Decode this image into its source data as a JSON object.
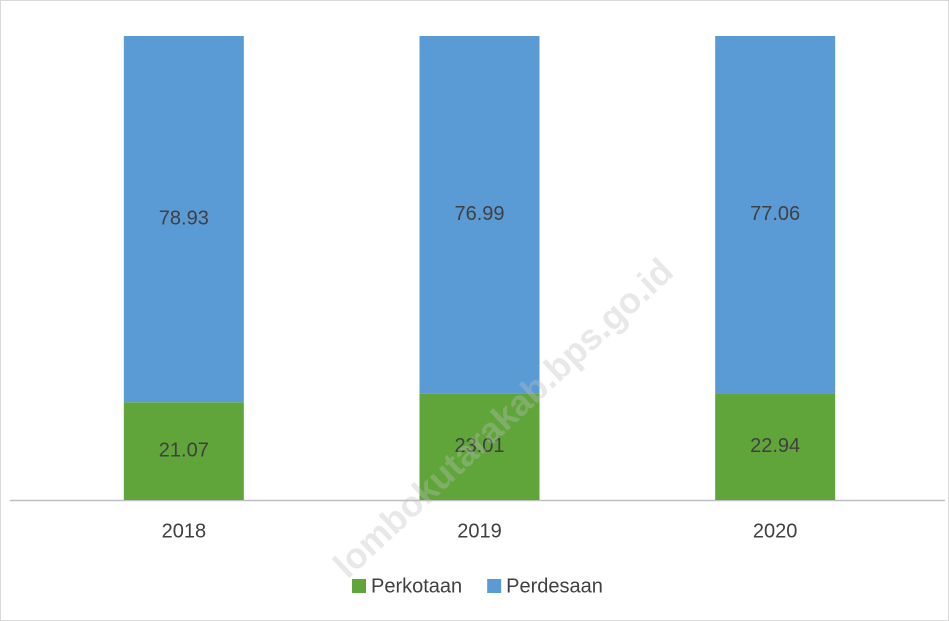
{
  "chart_data": {
    "type": "stacked_bar",
    "categories": [
      "2018",
      "2019",
      "2020"
    ],
    "series": [
      {
        "name": "Perkotaan",
        "color": "#5fa53a",
        "values": [
          21.07,
          23.01,
          22.94
        ]
      },
      {
        "name": "Perdesaan",
        "color": "#5b9bd5",
        "values": [
          78.93,
          76.99,
          77.06
        ]
      }
    ],
    "ylim": [
      0,
      100
    ],
    "legend": "bottom",
    "watermark": "lombokutarakab.bps.go.id"
  }
}
